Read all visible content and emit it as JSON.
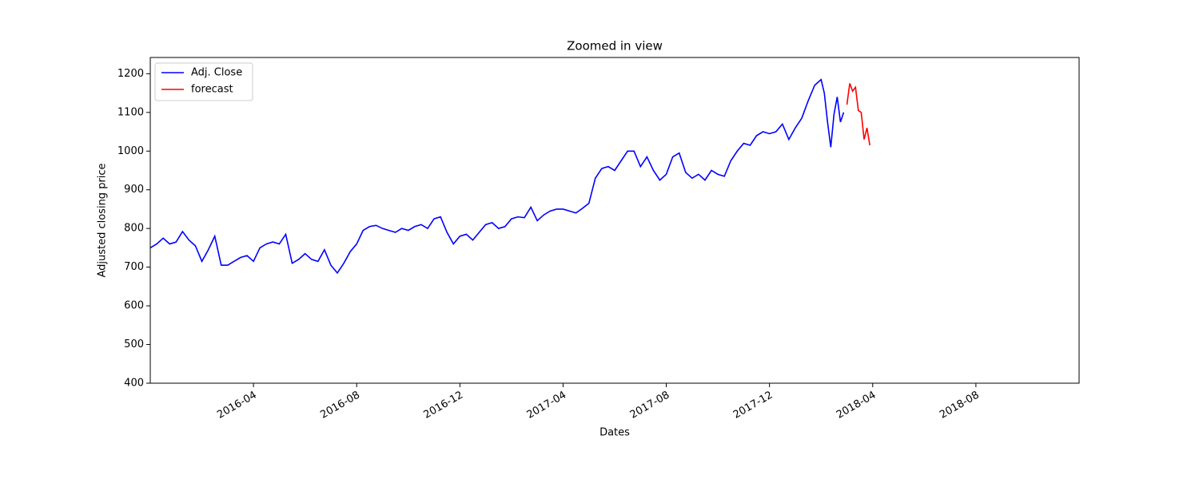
{
  "chart_data": {
    "type": "line",
    "title": "Zoomed in view",
    "x_label": "Dates",
    "y_label": "Adjusted closing price",
    "series": [
      {
        "name": "Adj. Close",
        "color": "#0000ff",
        "x": [
          "2015-12",
          "2015-12",
          "2015-12",
          "2015-12",
          "2016-01",
          "2016-01",
          "2016-01",
          "2016-01",
          "2016-02",
          "2016-02",
          "2016-02",
          "2016-02",
          "2016-03",
          "2016-03",
          "2016-03",
          "2016-03",
          "2016-04",
          "2016-04",
          "2016-04",
          "2016-04",
          "2016-05",
          "2016-05",
          "2016-05",
          "2016-05",
          "2016-06",
          "2016-06",
          "2016-06",
          "2016-06",
          "2016-07",
          "2016-07",
          "2016-07",
          "2016-07",
          "2016-08",
          "2016-08",
          "2016-08",
          "2016-08",
          "2016-09",
          "2016-09",
          "2016-09",
          "2016-09",
          "2016-10",
          "2016-10",
          "2016-10",
          "2016-10",
          "2016-11",
          "2016-11",
          "2016-11",
          "2016-11",
          "2016-12",
          "2016-12",
          "2016-12",
          "2016-12",
          "2017-01",
          "2017-01",
          "2017-01",
          "2017-01",
          "2017-02",
          "2017-02",
          "2017-02",
          "2017-02",
          "2017-03",
          "2017-03",
          "2017-03",
          "2017-03",
          "2017-04",
          "2017-04",
          "2017-04",
          "2017-04",
          "2017-05",
          "2017-05",
          "2017-05",
          "2017-05",
          "2017-06",
          "2017-06",
          "2017-06",
          "2017-06",
          "2017-07",
          "2017-07",
          "2017-07",
          "2017-07",
          "2017-08",
          "2017-08",
          "2017-08",
          "2017-08",
          "2017-09",
          "2017-09",
          "2017-09",
          "2017-09",
          "2017-10",
          "2017-10",
          "2017-10",
          "2017-10",
          "2017-11",
          "2017-11",
          "2017-11",
          "2017-11",
          "2017-12",
          "2017-12",
          "2017-12",
          "2017-12",
          "2018-01",
          "2018-01",
          "2018-01",
          "2018-01",
          "2018-02",
          "2018-02",
          "2018-02",
          "2018-02",
          "2018-02",
          "2018-02",
          "2018-02",
          "2018-02"
        ],
        "values": [
          750,
          760,
          775,
          760,
          765,
          792,
          770,
          755,
          715,
          745,
          780,
          705,
          705,
          715,
          725,
          730,
          715,
          750,
          760,
          765,
          760,
          785,
          710,
          720,
          735,
          720,
          715,
          745,
          705,
          685,
          710,
          740,
          760,
          795,
          805,
          808,
          800,
          795,
          790,
          800,
          795,
          805,
          810,
          800,
          825,
          830,
          790,
          760,
          780,
          785,
          770,
          790,
          810,
          815,
          800,
          805,
          825,
          830,
          828,
          855,
          820,
          835,
          845,
          850,
          850,
          845,
          840,
          852,
          865,
          930,
          955,
          960,
          950,
          975,
          1000,
          1000,
          960,
          985,
          950,
          925,
          940,
          985,
          995,
          945,
          930,
          940,
          925,
          950,
          940,
          935,
          975,
          1000,
          1020,
          1015,
          1040,
          1050,
          1045,
          1050,
          1070,
          1030,
          1060,
          1085,
          1130,
          1170,
          1185,
          1150,
          1075,
          1010,
          1095,
          1140,
          1075,
          1100
        ]
      },
      {
        "name": "forecast",
        "color": "#ff0000",
        "x": [
          "2018-03",
          "2018-03",
          "2018-03",
          "2018-03",
          "2018-03",
          "2018-03",
          "2018-03",
          "2018-03",
          "2018-03"
        ],
        "values": [
          1120,
          1175,
          1155,
          1165,
          1105,
          1100,
          1030,
          1060,
          1015
        ]
      }
    ],
    "xlim": [
      "2015-12",
      "2018-11"
    ],
    "xticks": [
      "2016-04",
      "2016-08",
      "2016-12",
      "2017-04",
      "2017-08",
      "2017-12",
      "2018-04",
      "2018-08"
    ],
    "ylim": [
      400,
      1242
    ],
    "yticks": [
      400,
      500,
      600,
      700,
      800,
      900,
      1000,
      1100,
      1200
    ],
    "legend": "upper left"
  }
}
